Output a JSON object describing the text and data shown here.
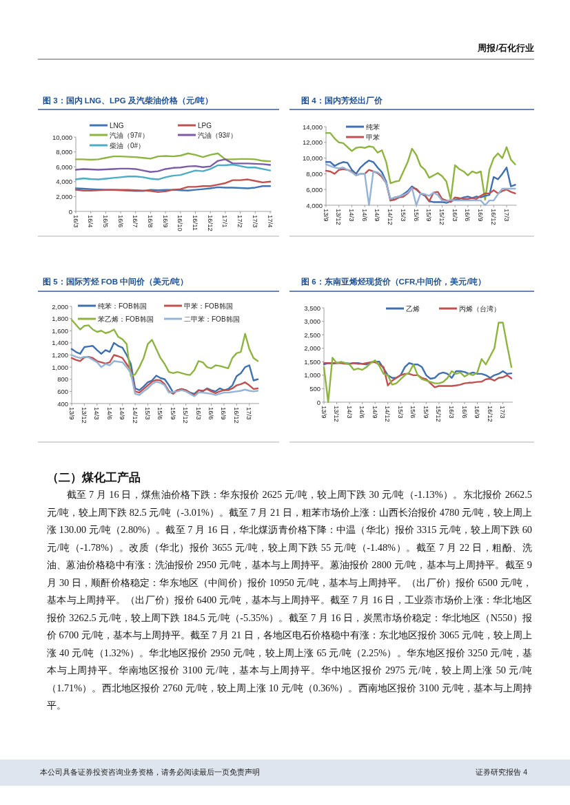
{
  "chart_data": [
    {
      "type": "other",
      "annotations": [
        "周报/石化行业"
      ]
    },
    {
      "type": "line",
      "title": "图 3：国内 LNG、LPG 及汽柴油价格（元/吨）",
      "legend": "top",
      "ylim": [
        0,
        10000
      ],
      "yticks": [
        0,
        {
          "value": 2000,
          "label": "2,000"
        },
        {
          "value": 4000,
          "label": "4,000"
        },
        {
          "value": 6000,
          "label": "6,000"
        },
        {
          "value": 8000,
          "label": "8,000"
        },
        {
          "value": 10000,
          "label": "10,000"
        }
      ],
      "categories": [
        "16/3",
        null,
        "16/4",
        null,
        "16/5",
        null,
        "16/6",
        null,
        "16/7",
        null,
        "16/8",
        null,
        "16/9",
        null,
        "16/10",
        null,
        "16/11",
        null,
        "16/12",
        null,
        "17/1",
        null,
        "17/2",
        null,
        "17/3",
        null,
        "17/4"
      ],
      "series": [
        {
          "name": "LNG",
          "color": "#3e74b8",
          "values": [
            3100,
            3050,
            3000,
            2950,
            2900,
            2900,
            2850,
            2800,
            2750,
            2750,
            2900,
            2850,
            2900,
            2900,
            2850,
            2800,
            2900,
            3000,
            3100,
            3250,
            3200,
            3200,
            3150,
            3100,
            3200,
            3400,
            3400
          ]
        },
        {
          "name": "LPG",
          "color": "#c0504d",
          "values": [
            2900,
            2800,
            2800,
            2850,
            2900,
            2900,
            2900,
            2900,
            2850,
            2800,
            2750,
            2600,
            2700,
            2900,
            3000,
            3300,
            3300,
            3400,
            3400,
            3600,
            3800,
            4200,
            4200,
            4300,
            4100,
            3900,
            4000
          ]
        },
        {
          "name": "汽油（97#）",
          "color": "#8db43f",
          "values": [
            7000,
            7000,
            6950,
            7000,
            7200,
            7400,
            7400,
            7350,
            7300,
            7200,
            7100,
            7400,
            7450,
            7400,
            7500,
            7800,
            7600,
            7300,
            7600,
            7800,
            7000,
            7000,
            7050,
            7050,
            7000,
            6800,
            6750
          ]
        },
        {
          "name": "汽油（93#）",
          "color": "#7b5aa6",
          "values": [
            5600,
            5700,
            5650,
            5600,
            5650,
            5700,
            5750,
            5750,
            5700,
            5500,
            5300,
            5400,
            5700,
            5850,
            5900,
            6050,
            6100,
            5950,
            6050,
            6800,
            7000,
            6450,
            6450,
            6450,
            6400,
            6350,
            6250
          ]
        },
        {
          "name": "柴油（0#）",
          "color": "#4bacc6",
          "values": [
            4300,
            4450,
            4350,
            4300,
            4400,
            4500,
            4600,
            4700,
            4700,
            4600,
            4400,
            4300,
            4600,
            4800,
            4900,
            5200,
            5500,
            5400,
            5700,
            6200,
            6200,
            6300,
            6100,
            5900,
            5900,
            5700,
            5500
          ]
        }
      ]
    },
    {
      "type": "line",
      "title": "图 4：国内芳烃出厂价",
      "legend": "top",
      "ylim": [
        4000,
        14000
      ],
      "yticks": [
        {
          "value": 4000,
          "label": "4,000"
        },
        {
          "value": 6000,
          "label": "6,000"
        },
        {
          "value": 8000,
          "label": "8,000"
        },
        {
          "value": 10000,
          "label": "10,000"
        },
        {
          "value": 12000,
          "label": "12,000"
        },
        {
          "value": 14000,
          "label": "14,000"
        }
      ],
      "categories": [
        "13/9",
        null,
        null,
        "13/12",
        null,
        null,
        "14/3",
        null,
        null,
        "14/6",
        null,
        null,
        "14/9",
        null,
        null,
        "14/12",
        null,
        null,
        "15/3",
        null,
        null,
        "15/6",
        null,
        null,
        "15/9",
        null,
        null,
        "15/12",
        null,
        null,
        "16/3",
        null,
        null,
        "16/6",
        null,
        null,
        "16/9",
        null,
        null,
        "16/12",
        null,
        null,
        "17/3",
        null,
        null
      ],
      "series": [
        {
          "color": "#8db43f",
          "values": [
            13200,
            13200,
            12500,
            12000,
            11900,
            11400,
            10900,
            11300,
            11400,
            11300,
            11500,
            11400,
            10700,
            11000,
            9500,
            6800,
            7000,
            7100,
            8300,
            9500,
            11200,
            10400,
            9000,
            8500,
            7500,
            7800,
            8100,
            7700,
            7000,
            4700,
            9100,
            8600,
            8300,
            7800,
            8300,
            8100,
            8300,
            4700,
            8500,
            10000,
            10600,
            10000,
            11400,
            9800,
            9200
          ]
        },
        {
          "name": "纯苯",
          "color": "#3e6fb0",
          "values": [
            9500,
            9500,
            9000,
            9300,
            9500,
            9400,
            8500,
            8000,
            8800,
            9300,
            9700,
            9500,
            8800,
            8200,
            7000,
            4600,
            5000,
            5100,
            5400,
            5800,
            6400,
            6000,
            5500,
            5200,
            4500,
            4400,
            4400,
            4400,
            4300,
            4500,
            4700,
            4800,
            5000,
            5100,
            4900,
            5100,
            5000,
            5200,
            5300,
            7600,
            7300,
            8000,
            8800,
            6400,
            6600
          ]
        },
        {
          "name": "甲苯",
          "color": "#c0504d",
          "values": [
            8400,
            8300,
            8000,
            8500,
            8600,
            8500,
            8300,
            7800,
            8000,
            8000,
            8500,
            8300,
            8100,
            7600,
            6800,
            4600,
            4700,
            5000,
            5100,
            5500,
            6200,
            6100,
            5500,
            5300,
            4500,
            5600,
            5700,
            4800,
            4600,
            4400,
            5000,
            4900,
            4800,
            4800,
            4900,
            4800,
            5200,
            5500,
            5500,
            5900,
            5500,
            5800,
            6000,
            5700,
            5500
          ]
        },
        {
          "color": "#95b3d7",
          "values": [
            9200,
            9000,
            8800,
            8700,
            8800,
            8500,
            8200,
            7800,
            8000,
            8000,
            4000,
            8300,
            8200,
            7800,
            6800,
            4800,
            5000,
            5100,
            5300,
            5600,
            6200,
            4000,
            5500,
            5400,
            5200,
            5600,
            5300,
            4600,
            4500,
            4700,
            4600,
            4600,
            4600,
            4600,
            4600,
            4600,
            4600,
            4000,
            4600,
            4600,
            5400,
            6100,
            6100,
            6100,
            6100
          ]
        }
      ]
    },
    {
      "type": "line",
      "title": "图 5：国际芳烃 FOB 中间价（美元/吨）",
      "legend": "top",
      "ylim": [
        400,
        2000
      ],
      "yticks": [
        400,
        600,
        800,
        {
          "value": 1000,
          "label": "1,000"
        },
        {
          "value": 1200,
          "label": "1,200"
        },
        {
          "value": 1400,
          "label": "1,400"
        },
        {
          "value": 1600,
          "label": "1,600"
        },
        {
          "value": 1800,
          "label": "1,800"
        },
        {
          "value": 2000,
          "label": "2,000"
        }
      ],
      "categories": [
        "13/9",
        null,
        null,
        "13/12",
        null,
        null,
        "14/3",
        null,
        null,
        "14/6",
        null,
        null,
        "14/9",
        null,
        null,
        "14/12",
        null,
        null,
        "15/3",
        null,
        null,
        "15/6",
        null,
        null,
        "15/9",
        null,
        null,
        "15/12",
        null,
        null,
        "16/3",
        null,
        null,
        "16/6",
        null,
        null,
        "16/9",
        null,
        null,
        "16/12",
        null,
        null,
        "17/3",
        null,
        null
      ],
      "series": [
        {
          "name": "纯苯：FOB韩国",
          "color": "#3e6fb0",
          "values": [
            1300,
            1250,
            1220,
            1330,
            1340,
            1350,
            1280,
            1220,
            1280,
            1250,
            1400,
            1350,
            1320,
            1200,
            1050,
            650,
            620,
            680,
            750,
            780,
            860,
            820,
            800,
            700,
            580,
            620,
            640,
            620,
            580,
            560,
            620,
            600,
            650,
            620,
            600,
            650,
            620,
            640,
            700,
            850,
            900,
            1000,
            1030,
            780,
            800
          ]
        },
        {
          "name": "甲苯：FOB韩国",
          "color": "#c0504d",
          "values": [
            1150,
            1120,
            1100,
            1160,
            1170,
            1150,
            1100,
            1080,
            1060,
            1080,
            1200,
            1180,
            1150,
            1050,
            950,
            600,
            580,
            640,
            700,
            760,
            790,
            780,
            720,
            600,
            560,
            620,
            640,
            620,
            570,
            540,
            620,
            610,
            640,
            600,
            570,
            600,
            620,
            620,
            650,
            700,
            720,
            750,
            700,
            640,
            650
          ]
        },
        {
          "name": "苯乙烯：FOB韩国",
          "color": "#8db43f",
          "values": [
            1780,
            1700,
            1620,
            1680,
            1690,
            1620,
            1580,
            1600,
            1560,
            1580,
            1620,
            1500,
            1460,
            1380,
            850,
            880,
            1000,
            1150,
            1380,
            1450,
            1300,
            1150,
            1050,
            920,
            900,
            920,
            900,
            880,
            870,
            950,
            1100,
            1080,
            1000,
            980,
            1030,
            1020,
            1000,
            980,
            1150,
            1230,
            1250,
            1550,
            1300,
            1150,
            1100
          ]
        },
        {
          "name": "二甲苯：FOB韩国",
          "color": "#95b3d7",
          "values": [
            1200,
            1170,
            1150,
            1170,
            1160,
            1120,
            1080,
            1000,
            1050,
            1030,
            1100,
            1090,
            1080,
            1000,
            900,
            560,
            540,
            600,
            650,
            720,
            760,
            740,
            700,
            580,
            590,
            600,
            620,
            600,
            560,
            520,
            580,
            580,
            570,
            560,
            540,
            560,
            580,
            580,
            590,
            600,
            610,
            630,
            610,
            600,
            610
          ]
        }
      ]
    },
    {
      "type": "line",
      "title": "图 6：东南亚烯烃现货价（CFR,中间价，美元/吨）",
      "legend": "top",
      "ylim": [
        0,
        3500
      ],
      "yticks": [
        0,
        500,
        {
          "value": 1000,
          "label": "1,000"
        },
        {
          "value": 1500,
          "label": "1,500"
        },
        {
          "value": 2000,
          "label": "2,000"
        },
        {
          "value": 2500,
          "label": "2,500"
        },
        {
          "value": 3000,
          "label": "3,000"
        },
        {
          "value": 3500,
          "label": "3,500"
        }
      ],
      "categories": [
        "13/9",
        null,
        null,
        "13/12",
        null,
        null,
        "14/3",
        null,
        null,
        "14/6",
        null,
        null,
        "14/9",
        null,
        null,
        "14/12",
        null,
        null,
        "15/3",
        null,
        null,
        "15/6",
        null,
        null,
        "15/9",
        null,
        null,
        "15/12",
        null,
        null,
        "16/3",
        null,
        null,
        "16/6",
        null,
        null,
        "16/9",
        null,
        null,
        "16/12",
        null,
        null,
        "17/3",
        null,
        null
      ],
      "series": [
        {
          "name": "乙烯",
          "color": "#3e6fb0",
          "values": [
            1400,
            1450,
            1430,
            1450,
            1480,
            1450,
            1430,
            1450,
            1450,
            1420,
            1400,
            1480,
            1500,
            1500,
            1250,
            1000,
            900,
            900,
            1000,
            1300,
            1450,
            1400,
            1400,
            1300,
            1000,
            870,
            900,
            1050,
            1100,
            1050,
            900,
            1150,
            1150,
            1120,
            1050,
            1100,
            1050,
            1050,
            1000,
            900,
            1000,
            1050,
            1150,
            1050,
            1070
          ]
        },
        {
          "name": "丙烯（台湾）",
          "color": "#c0504d",
          "values": [
            1450,
            1450,
            1450,
            1450,
            1450,
            1420,
            1420,
            1450,
            1420,
            1420,
            1450,
            1480,
            1480,
            1400,
            1300,
            620,
            800,
            900,
            1000,
            1050,
            1050,
            1000,
            1000,
            900,
            850,
            700,
            550,
            600,
            600,
            600,
            600,
            620,
            650,
            700,
            720,
            730,
            750,
            760,
            850,
            870,
            800,
            900,
            920,
            1000,
            880
          ]
        },
        {
          "color": "#8db43f",
          "values": [
            1300,
            0,
            1650,
            1450,
            1500,
            1450,
            1400,
            1200,
            1250,
            1200,
            1300,
            1450,
            1550,
            1350,
            1050,
            1000,
            650,
            700,
            850,
            1000,
            1100,
            1400,
            1000,
            850,
            800,
            750,
            700,
            700,
            750,
            900,
            1150,
            1050,
            1100,
            950,
            1050,
            1000,
            1100,
            1600,
            1400,
            1700,
            2000,
            2950,
            2950,
            2100,
            1300
          ]
        }
      ]
    },
    {
      "type": "other",
      "title": "（二）煤化工产品",
      "annotations": [
        "截至 7 月 16 日，煤焦油价格下跌：华东报价 2625 元/吨，较上周下跌 30 元/吨（-1.13%）。东北报价 2662.5 元/吨，较上周下跌 82.5 元/吨（-3.01%）。截至 7 月 21 日，粗苯市场价上涨：山西长治报价 4780 元/吨，较上周上涨 130.00 元/吨（2.80%）。截至 7 月 16 日，华北煤沥青价格下降：中温（华北）报价 3315 元/吨，较上周下跌 60 元/吨（-1.78%）。改质（华北）报价 3655 元/吨，较上周下跌 55 元/吨（-1.48%）。截至 7 月 22 日，粗酚、洗油、蒽油价格稳中有涨：洗油报价 2950 元/吨，基本与上周持平。蒽油报价 2800 元/吨，基本与上周持平。截至 9 月 30 日，顺酐价格稳定：华东地区（中间价）报价 10950 元/吨，基本与上周持平。（出厂价）报价 6500 元/吨，基本与上周持平。（出厂价）报价 6400 元/吨，基本与上周持平。截至 7 月 16 日，工业萘市场价上涨：华北地区报价 3262.5 元/吨，较上周下跌 184.5 元/吨（-5.35%）。截至 7 月 16 日，炭黑市场价稳定：华北地区（N550）报价 6700 元/吨，基本与上周持平。截至 7 月 21 日，各地区电石价格稳中有涨：东北地区报价 3065 元/吨，较上周上涨 40 元/吨（1.32%）。华北地区报价 2950 元/吨，较上周上涨 65 元/吨（2.25%）。华东地区报价 3250 元/吨，基本与上周持平。华南地区报价 3100 元/吨，基本与上周持平。华中地区报价 2975 元/吨，较上周上涨 50 元/吨（1.71%）。西北地区报价 2760 元/吨，较上周上涨 10 元/吨（0.36%）。西南地区报价 3100 元/吨，基本与上周持平。"
      ]
    },
    {
      "type": "other",
      "annotations": [
        "本公司具备证券投资咨询业务资格，请务必阅读最后一页免责声明",
        "证券研究报告",
        "4"
      ]
    }
  ]
}
